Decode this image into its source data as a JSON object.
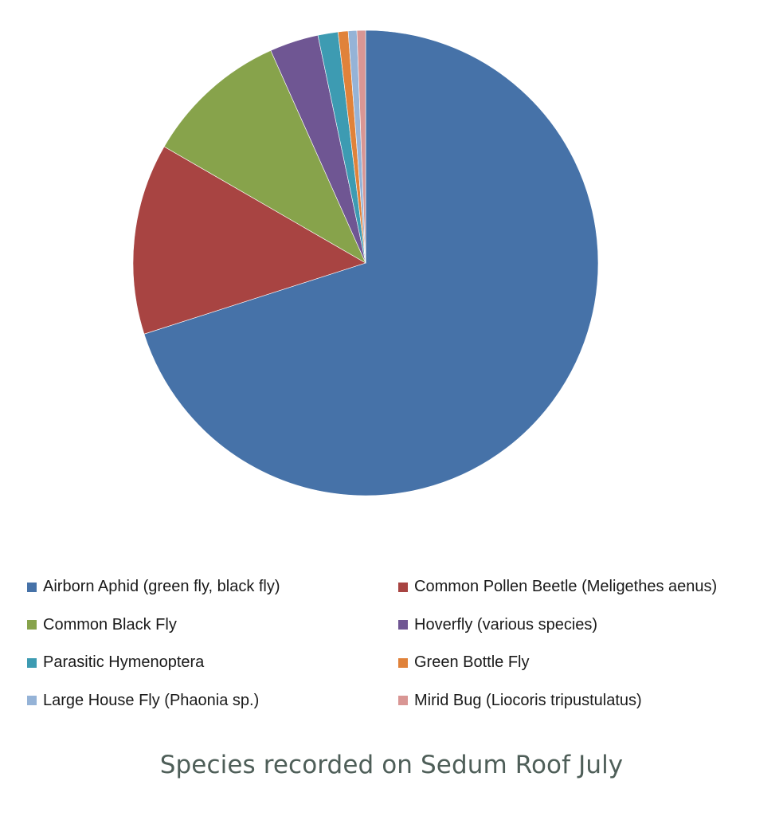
{
  "chart_data": {
    "type": "pie",
    "title": "Species recorded on Sedum Roof July",
    "start_angle_deg": 0,
    "direction": "clockwise",
    "legend_position": "bottom",
    "slices": [
      {
        "label": "Airborn Aphid (green fly, black fly)",
        "value": 70.2,
        "color": "#4672A8"
      },
      {
        "label": "Common Pollen Beetle (Meligethes aenus)",
        "value": 13.3,
        "color": "#A84442"
      },
      {
        "label": "Common Black Fly",
        "value": 10.0,
        "color": "#87A34B"
      },
      {
        "label": "Hoverfly (various species)",
        "value": 3.4,
        "color": "#6F5693"
      },
      {
        "label": "Parasitic Hymenoptera",
        "value": 1.4,
        "color": "#3D9BB2"
      },
      {
        "label": "Green Bottle Fly",
        "value": 0.7,
        "color": "#E0823A"
      },
      {
        "label": "Large House Fly (Phaonia sp.)",
        "value": 0.6,
        "color": "#95B3D7"
      },
      {
        "label": "Mirid Bug (Liocoris tripustulatus)",
        "value": 0.6,
        "color": "#D99694"
      }
    ]
  },
  "legend": {
    "items": [
      {
        "label": "Airborn Aphid (green fly, black fly)",
        "color": "#4672A8"
      },
      {
        "label": "Common Pollen Beetle (Meligethes aenus)",
        "color": "#A84442"
      },
      {
        "label": "Common Black Fly",
        "color": "#87A34B"
      },
      {
        "label": "Hoverfly (various species)",
        "color": "#6F5693"
      },
      {
        "label": "Parasitic Hymenoptera",
        "color": "#3D9BB2"
      },
      {
        "label": "Green Bottle Fly",
        "color": "#E0823A"
      },
      {
        "label": "Large House Fly (Phaonia sp.)",
        "color": "#95B3D7"
      },
      {
        "label": "Mirid Bug (Liocoris tripustulatus)",
        "color": "#D99694"
      }
    ]
  }
}
